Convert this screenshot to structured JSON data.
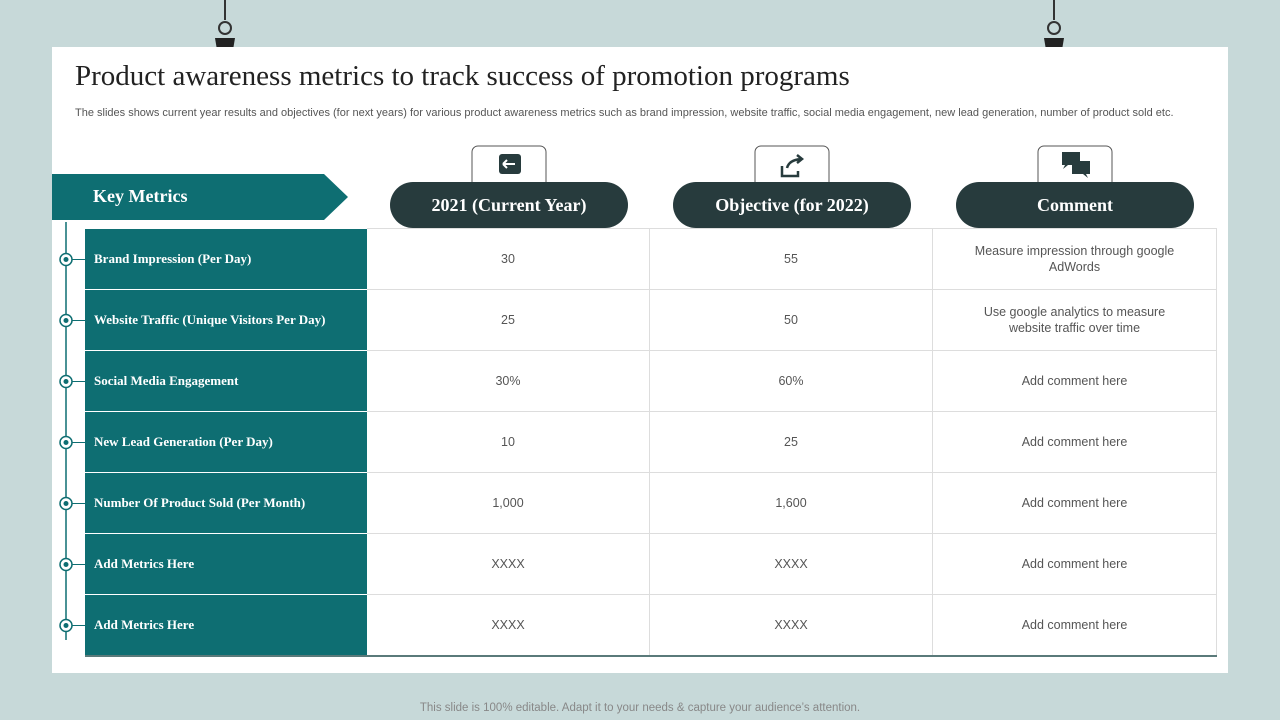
{
  "header": {
    "title": "Product awareness metrics to track success of promotion programs",
    "subtitle": "The slides shows current year results and objectives (for next years) for various product awareness metrics such as brand impression, website traffic, social media engagement, new lead generation, number of product sold etc."
  },
  "table": {
    "key_label": "Key Metrics",
    "columns": [
      "2021 (Current Year)",
      "Objective (for 2022)",
      "Comment"
    ],
    "rows": [
      [
        "Brand Impression (Per Day)",
        "30",
        "55",
        "Measure impression through google AdWords"
      ],
      [
        "Website Traffic (Unique Visitors Per Day)",
        "25",
        "50",
        "Use google analytics to measure website traffic over time"
      ],
      [
        "Social Media Engagement",
        "30%",
        "60%",
        "Add comment here"
      ],
      [
        "New Lead Generation (Per Day)",
        "10",
        "25",
        "Add comment here"
      ],
      [
        "Number Of Product Sold (Per Month)",
        "1,000",
        "1,600",
        "Add comment here"
      ],
      [
        "Add Metrics Here",
        "XXXX",
        "XXXX",
        "Add comment here"
      ],
      [
        "Add Metrics Here",
        "XXXX",
        "XXXX",
        "Add comment here"
      ]
    ]
  },
  "footer": "This slide is 100% editable. Adapt it to your needs & capture your audience’s attention."
}
